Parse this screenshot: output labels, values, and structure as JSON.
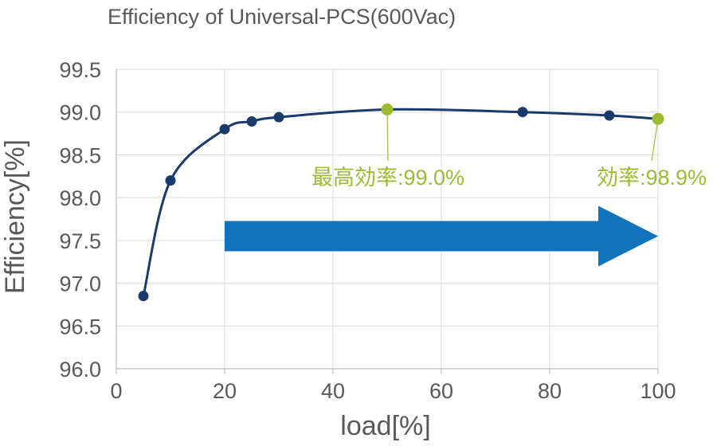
{
  "chart_data": {
    "type": "line",
    "title": "Efficiency of Universal-PCS(600Vac)",
    "xlabel": "load[%]",
    "ylabel": "Efficiency[%]",
    "xlim": [
      0,
      100
    ],
    "ylim": [
      96.0,
      99.5
    ],
    "xticks": [
      0,
      20,
      40,
      60,
      80,
      100
    ],
    "yticks": [
      "96.0",
      "96.5",
      "97.0",
      "97.5",
      "98.0",
      "98.5",
      "99.0",
      "99.5"
    ],
    "grid": true,
    "series": [
      {
        "color": "#1a3a6b",
        "x": [
          5,
          10,
          20,
          25,
          30,
          50,
          75,
          91,
          100
        ],
        "y": [
          96.85,
          98.2,
          98.8,
          98.89,
          98.94,
          99.03,
          99.0,
          98.96,
          98.92
        ]
      }
    ],
    "highlight_color": "#9dbb2f",
    "highlight_indices": [
      5,
      8
    ],
    "annotations": [
      {
        "text": "最高効率:99.0%",
        "x": 50,
        "y": 99.03
      },
      {
        "text": "効率:98.9%",
        "x": 100,
        "y": 98.92
      }
    ],
    "arrow": {
      "from_x": 20,
      "to_x": 100,
      "y": 97.55,
      "color": "#1273bd"
    }
  }
}
